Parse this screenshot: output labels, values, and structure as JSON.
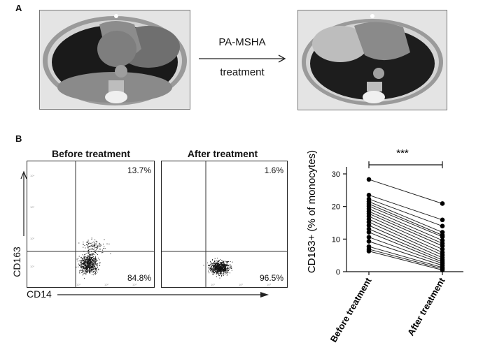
{
  "panel_a": {
    "letter": "A",
    "arrow_top": "PA-MSHA",
    "arrow_bottom": "treatment"
  },
  "panel_b": {
    "letter": "B",
    "facs": {
      "left": {
        "title": "Before treatment",
        "upper_right": "13.7%",
        "lower_right": "84.8%"
      },
      "right": {
        "title": "After treatment",
        "upper_right": "1.6%",
        "lower_right": "96.5%"
      },
      "y_label": "CD163",
      "x_label": "CD14"
    }
  },
  "chart_data": {
    "type": "scatter",
    "categories": [
      "Before treatment",
      "After treatment"
    ],
    "ylabel": "CD163+ (% of monocytes)",
    "ylim": [
      0,
      30
    ],
    "yticks": [
      0,
      10,
      20,
      30
    ],
    "significance": "***",
    "pairs": [
      [
        28.3,
        20.9
      ],
      [
        23.5,
        15.9
      ],
      [
        22.3,
        14.0
      ],
      [
        21.5,
        12.1
      ],
      [
        20.8,
        11.2
      ],
      [
        20.1,
        10.7
      ],
      [
        19.3,
        9.6
      ],
      [
        18.5,
        8.7
      ],
      [
        17.8,
        7.9
      ],
      [
        17.0,
        6.9
      ],
      [
        16.1,
        5.9
      ],
      [
        15.2,
        5.1
      ],
      [
        14.2,
        4.3
      ],
      [
        13.1,
        3.6
      ],
      [
        12.1,
        3.0
      ],
      [
        10.6,
        2.5
      ],
      [
        9.3,
        1.9
      ],
      [
        7.7,
        1.3
      ],
      [
        6.9,
        0.9
      ],
      [
        6.3,
        0.5
      ]
    ],
    "colors": {
      "points": "#000000",
      "lines": "#222222"
    }
  }
}
